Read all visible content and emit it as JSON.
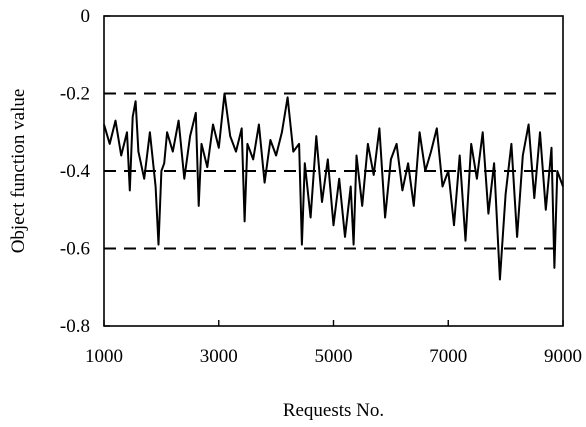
{
  "chart_data": {
    "type": "line",
    "xlabel": "Requests No.",
    "ylabel": "Object function value",
    "xlim": [
      1000,
      9000
    ],
    "ylim": [
      -0.8,
      0
    ],
    "xticks": [
      1000,
      3000,
      5000,
      7000,
      9000
    ],
    "xtick_labels": [
      "1000",
      "3000",
      "5000",
      "7000",
      "9000"
    ],
    "yticks": [
      0,
      -0.2,
      -0.4,
      -0.6,
      -0.8
    ],
    "ytick_labels": [
      "0",
      "-0.2",
      "-0.4",
      "-0.6",
      "-0.8"
    ],
    "reference_lines": [
      -0.2,
      -0.4,
      -0.6
    ],
    "grid": false,
    "line_color": "#000000",
    "series": [
      {
        "x": [
          1000,
          1100,
          1200,
          1300,
          1400,
          1450,
          1500,
          1550,
          1600,
          1700,
          1800,
          1900,
          1950,
          2000,
          2050,
          2100,
          2200,
          2300,
          2400,
          2500,
          2600,
          2650,
          2700,
          2800,
          2900,
          3000,
          3100,
          3200,
          3300,
          3400,
          3450,
          3500,
          3600,
          3700,
          3800,
          3900,
          4000,
          4100,
          4200,
          4300,
          4400,
          4450,
          4500,
          4600,
          4700,
          4800,
          4900,
          5000,
          5100,
          5200,
          5300,
          5350,
          5400,
          5500,
          5600,
          5700,
          5800,
          5900,
          6000,
          6100,
          6200,
          6300,
          6400,
          6500,
          6600,
          6700,
          6800,
          6900,
          7000,
          7100,
          7200,
          7300,
          7400,
          7500,
          7600,
          7700,
          7800,
          7900,
          8000,
          8100,
          8200,
          8300,
          8400,
          8500,
          8600,
          8700,
          8800,
          8850,
          8900,
          9000
        ],
        "y": [
          -0.28,
          -0.33,
          -0.27,
          -0.36,
          -0.3,
          -0.45,
          -0.26,
          -0.22,
          -0.35,
          -0.42,
          -0.3,
          -0.44,
          -0.59,
          -0.4,
          -0.38,
          -0.3,
          -0.35,
          -0.27,
          -0.42,
          -0.31,
          -0.25,
          -0.49,
          -0.33,
          -0.39,
          -0.28,
          -0.34,
          -0.2,
          -0.31,
          -0.35,
          -0.29,
          -0.53,
          -0.33,
          -0.37,
          -0.28,
          -0.43,
          -0.32,
          -0.36,
          -0.3,
          -0.21,
          -0.35,
          -0.33,
          -0.59,
          -0.38,
          -0.52,
          -0.31,
          -0.48,
          -0.37,
          -0.54,
          -0.42,
          -0.57,
          -0.44,
          -0.59,
          -0.36,
          -0.49,
          -0.33,
          -0.41,
          -0.29,
          -0.52,
          -0.37,
          -0.33,
          -0.45,
          -0.38,
          -0.49,
          -0.3,
          -0.4,
          -0.35,
          -0.29,
          -0.44,
          -0.4,
          -0.54,
          -0.36,
          -0.58,
          -0.33,
          -0.42,
          -0.3,
          -0.51,
          -0.38,
          -0.68,
          -0.46,
          -0.33,
          -0.57,
          -0.36,
          -0.28,
          -0.47,
          -0.3,
          -0.5,
          -0.34,
          -0.65,
          -0.4,
          -0.44
        ]
      }
    ]
  }
}
